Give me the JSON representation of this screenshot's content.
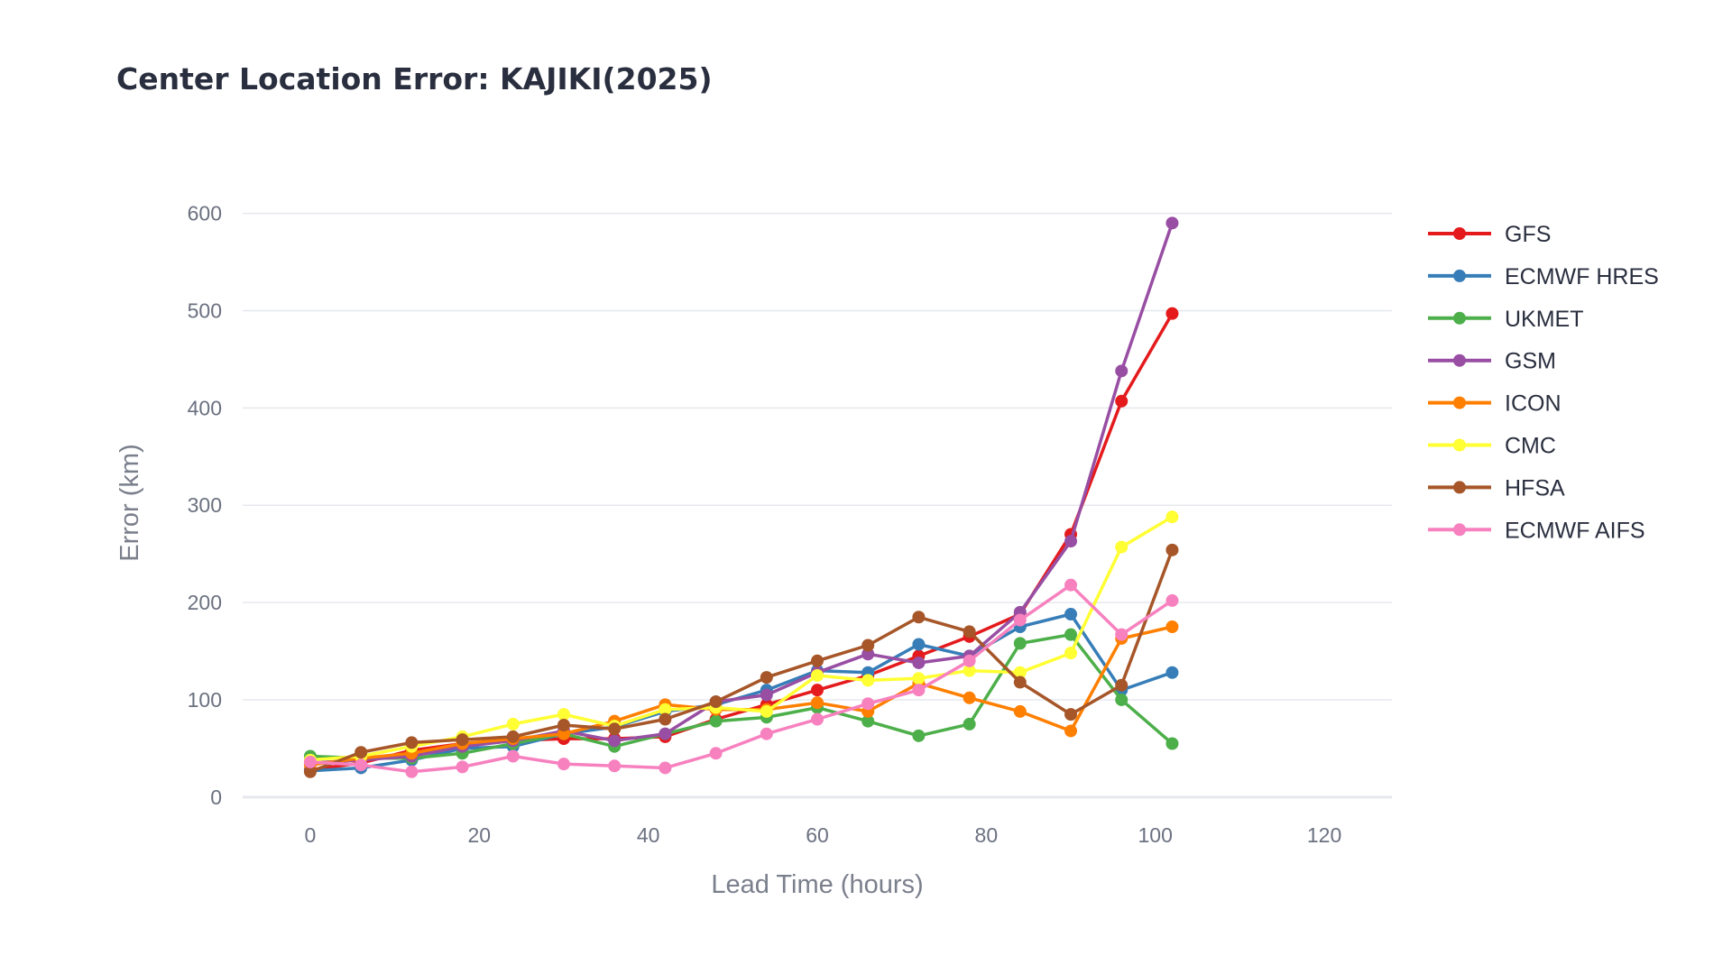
{
  "chart_data": {
    "type": "line",
    "title": "Center Location Error: KAJIKI(2025)",
    "xlabel": "Lead Time (hours)",
    "ylabel": "Error (km)",
    "xlim": [
      -8,
      128
    ],
    "ylim": [
      -15,
      620
    ],
    "xticks": [
      0,
      20,
      40,
      60,
      80,
      100,
      120
    ],
    "yticks": [
      0,
      100,
      200,
      300,
      400,
      500,
      600
    ],
    "grid": true,
    "legend_position": "right",
    "series": [
      {
        "name": "GFS",
        "color": "#e41a1c",
        "x": [
          0,
          6,
          12,
          18,
          24,
          30,
          36,
          42,
          48,
          54,
          60,
          66,
          72,
          78,
          84,
          90,
          96,
          102
        ],
        "y": [
          28,
          35,
          48,
          55,
          58,
          60,
          60,
          62,
          80,
          95,
          110,
          125,
          145,
          165,
          188,
          270,
          407,
          497
        ]
      },
      {
        "name": "ECMWF HRES",
        "color": "#377eb8",
        "x": [
          0,
          6,
          12,
          18,
          24,
          30,
          36,
          42,
          48,
          54,
          60,
          66,
          72,
          78,
          84,
          90,
          96,
          102
        ],
        "y": [
          27,
          30,
          38,
          50,
          52,
          65,
          72,
          88,
          95,
          110,
          130,
          128,
          157,
          145,
          175,
          188,
          110,
          128
        ]
      },
      {
        "name": "UKMET",
        "color": "#4daf4a",
        "x": [
          0,
          6,
          12,
          18,
          24,
          30,
          36,
          42,
          48,
          54,
          60,
          66,
          72,
          78,
          84,
          90,
          96,
          102
        ],
        "y": [
          42,
          40,
          40,
          45,
          55,
          65,
          52,
          65,
          78,
          82,
          92,
          78,
          63,
          75,
          158,
          167,
          100,
          55
        ]
      },
      {
        "name": "GSM",
        "color": "#984ea3",
        "x": [
          0,
          6,
          12,
          18,
          24,
          30,
          36,
          42,
          48,
          54,
          60,
          66,
          72,
          78,
          84,
          90,
          96,
          102
        ],
        "y": [
          35,
          38,
          42,
          52,
          58,
          68,
          58,
          65,
          98,
          105,
          128,
          147,
          138,
          145,
          190,
          263,
          438,
          590
        ]
      },
      {
        "name": "ICON",
        "color": "#ff7f00",
        "x": [
          0,
          6,
          12,
          18,
          24,
          30,
          36,
          42,
          48,
          54,
          60,
          66,
          72,
          78,
          84,
          90,
          96,
          102
        ],
        "y": [
          33,
          40,
          45,
          55,
          60,
          65,
          78,
          95,
          90,
          90,
          97,
          88,
          117,
          102,
          88,
          68,
          163,
          175
        ]
      },
      {
        "name": "CMC",
        "color": "#ffff33",
        "x": [
          0,
          6,
          12,
          18,
          24,
          30,
          36,
          42,
          48,
          54,
          60,
          66,
          72,
          78,
          84,
          90,
          96,
          102
        ],
        "y": [
          38,
          42,
          52,
          62,
          75,
          85,
          73,
          90,
          92,
          88,
          125,
          120,
          122,
          130,
          128,
          148,
          257,
          288
        ]
      },
      {
        "name": "HFSA",
        "color": "#a65628",
        "x": [
          0,
          6,
          12,
          18,
          24,
          30,
          36,
          42,
          48,
          54,
          60,
          66,
          72,
          78,
          84,
          90,
          96,
          102
        ],
        "y": [
          26,
          46,
          56,
          59,
          62,
          74,
          70,
          80,
          98,
          123,
          140,
          156,
          185,
          170,
          118,
          85,
          115,
          254
        ]
      },
      {
        "name": "ECMWF AIFS",
        "color": "#f781bf",
        "x": [
          0,
          6,
          12,
          18,
          24,
          30,
          36,
          42,
          48,
          54,
          60,
          66,
          72,
          78,
          84,
          90,
          96,
          102
        ],
        "y": [
          36,
          33,
          26,
          31,
          42,
          34,
          32,
          30,
          45,
          65,
          80,
          96,
          110,
          140,
          182,
          218,
          167,
          202
        ]
      }
    ]
  }
}
